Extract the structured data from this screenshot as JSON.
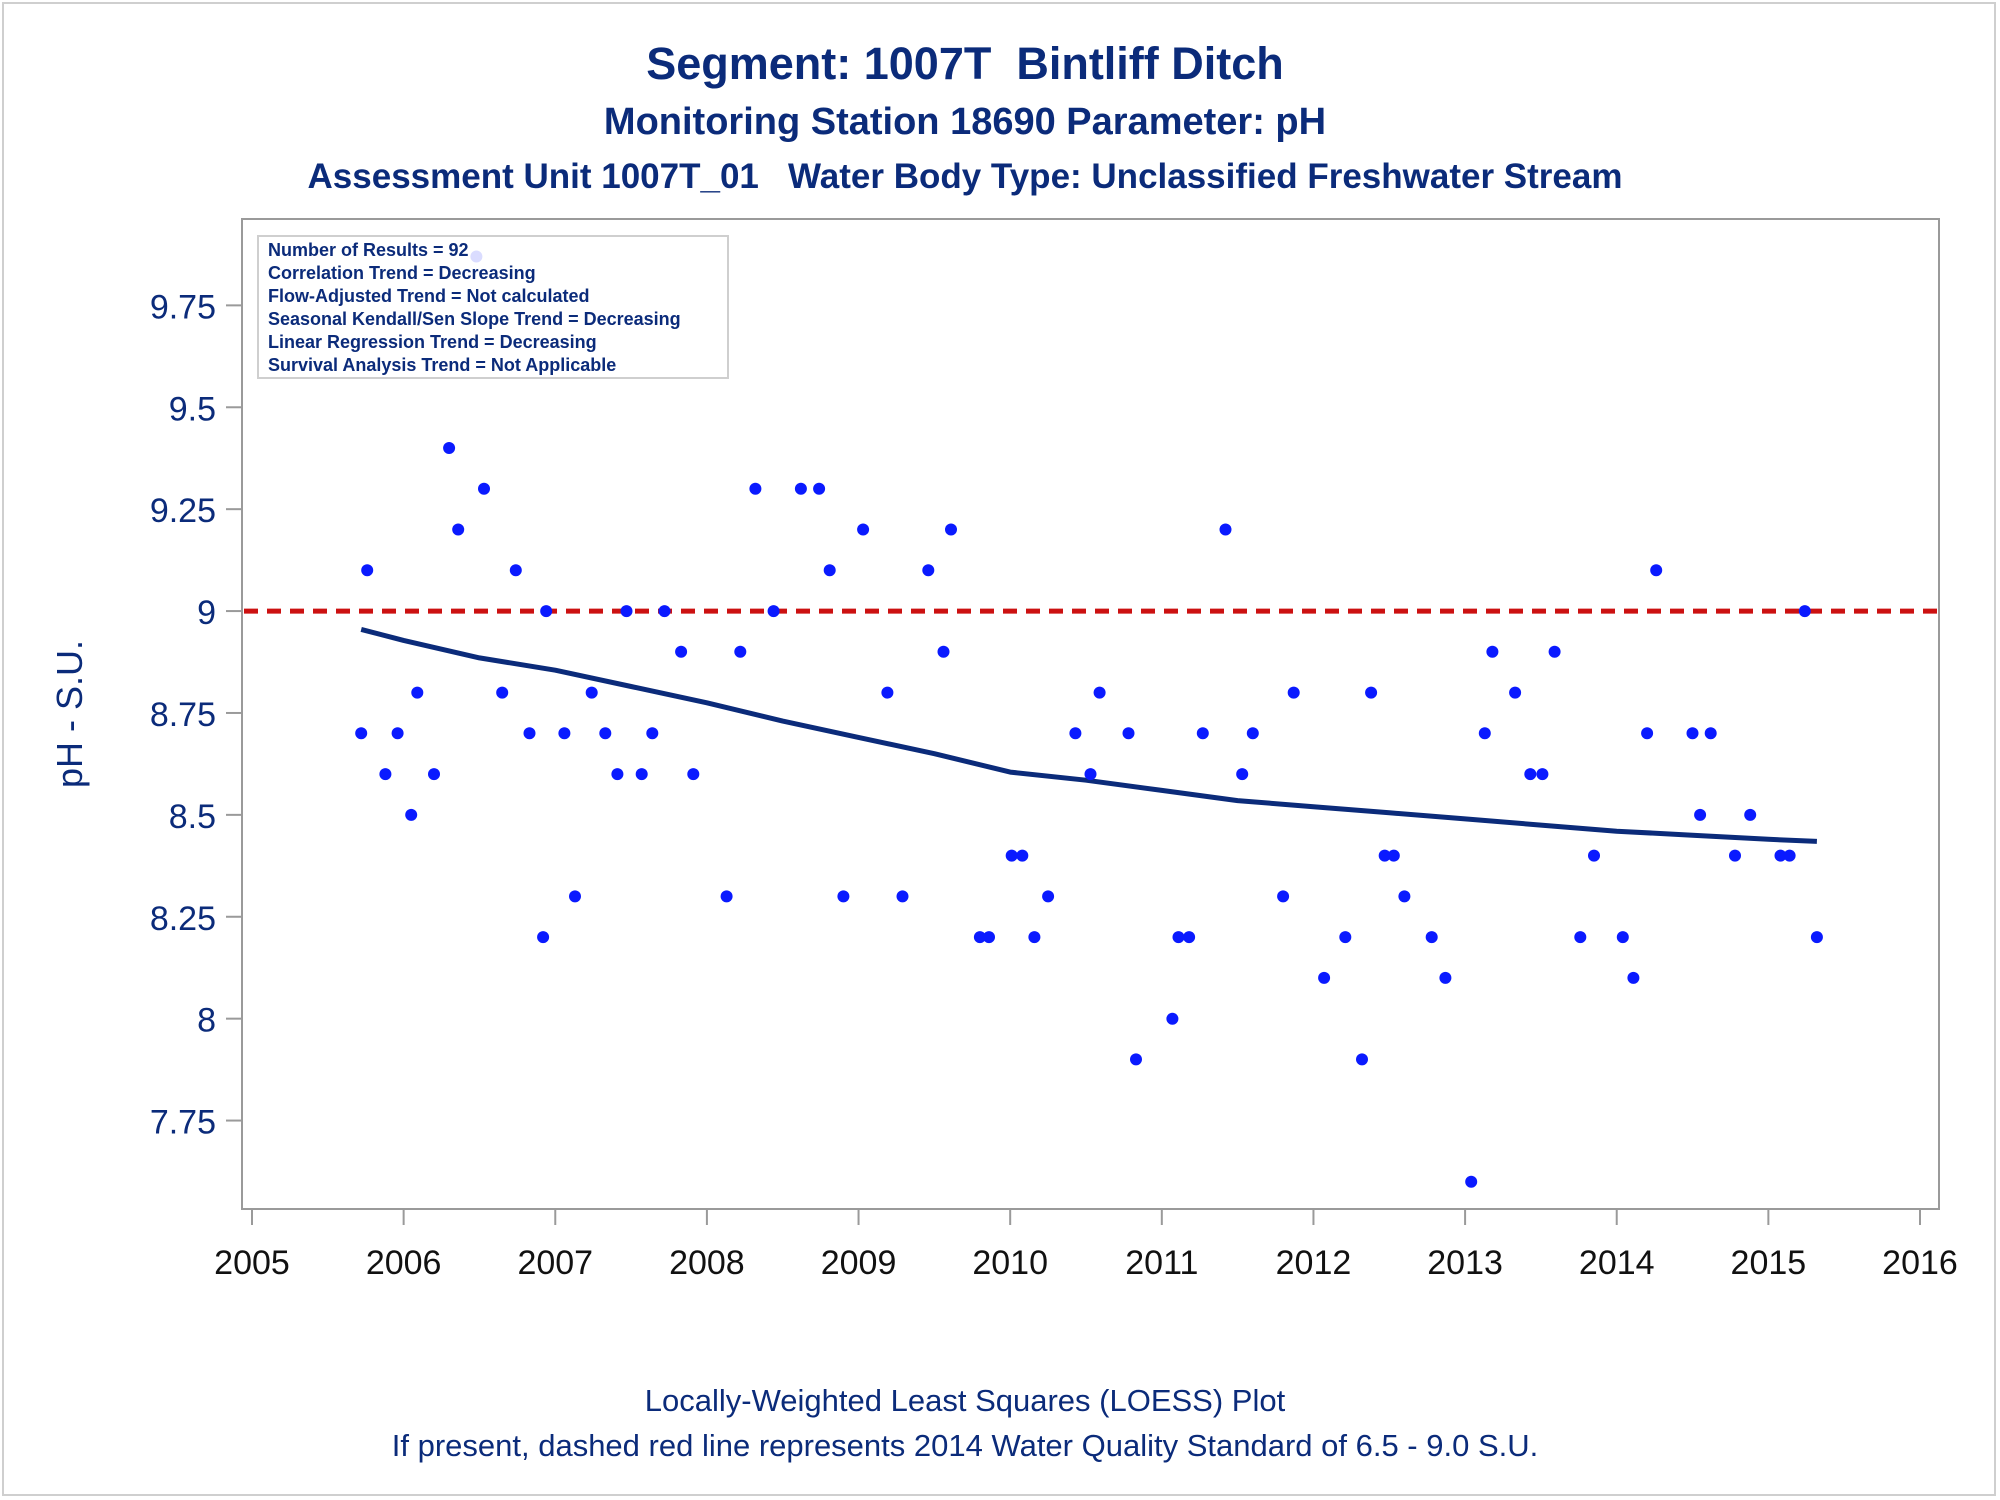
{
  "titles": {
    "line1": "Segment: 1007T  Bintliff Ditch",
    "line2": "Monitoring Station 18690 Parameter: pH",
    "line3": "Assessment Unit 1007T_01   Water Body Type: Unclassified Freshwater Stream"
  },
  "footnotes": {
    "line1": "Locally-Weighted Least Squares (LOESS) Plot",
    "line2": "If present, dashed red line represents 2014 Water Quality Standard of 6.5 - 9.0 S.U."
  },
  "colors": {
    "title": "#0b2b7a",
    "points": "#0a1aff",
    "loess": "#0b2b7a",
    "standard_line": "#cc1111",
    "axis": "#9a9a9a"
  },
  "chart_data": {
    "type": "scatter",
    "ylabel": "pH - S.U.",
    "xlabel": "",
    "xlim": [
      2005,
      2016
    ],
    "ylim": [
      7.56,
      9.93
    ],
    "x_ticks": [
      2005,
      2006,
      2007,
      2008,
      2009,
      2010,
      2011,
      2012,
      2013,
      2014,
      2015,
      2016
    ],
    "y_ticks": [
      7.75,
      8,
      8.25,
      8.5,
      8.75,
      9,
      9.25,
      9.5,
      9.75
    ],
    "y_tick_labels": [
      "7.75",
      "8",
      "8.25",
      "8.5",
      "8.75",
      "9",
      "9.25",
      "9.5",
      "9.75"
    ],
    "grid": false,
    "legend_box": {
      "placement": "top-left",
      "lines": [
        "Number of Results = 92",
        "Correlation Trend = Decreasing",
        "Flow-Adjusted Trend = Not calculated",
        "Seasonal Kendall/Sen Slope Trend = Decreasing",
        "Linear Regression Trend = Decreasing",
        "Survival Analysis Trend = Not Applicable"
      ]
    },
    "reference_line": {
      "y": 9.0,
      "style": "dashed"
    },
    "series": [
      {
        "kind": "points",
        "points": [
          [
            2005.72,
            8.7
          ],
          [
            2005.76,
            9.1
          ],
          [
            2005.88,
            8.6
          ],
          [
            2005.96,
            8.7
          ],
          [
            2006.05,
            8.5
          ],
          [
            2006.09,
            8.8
          ],
          [
            2006.2,
            8.6
          ],
          [
            2006.3,
            9.4
          ],
          [
            2006.36,
            9.2
          ],
          [
            2006.48,
            9.87
          ],
          [
            2006.53,
            9.3
          ],
          [
            2006.65,
            8.8
          ],
          [
            2006.74,
            9.1
          ],
          [
            2006.83,
            8.7
          ],
          [
            2006.92,
            8.2
          ],
          [
            2006.94,
            9.0
          ],
          [
            2007.06,
            8.7
          ],
          [
            2007.13,
            8.3
          ],
          [
            2007.24,
            8.8
          ],
          [
            2007.33,
            8.7
          ],
          [
            2007.41,
            8.6
          ],
          [
            2007.47,
            9.0
          ],
          [
            2007.57,
            8.6
          ],
          [
            2007.64,
            8.7
          ],
          [
            2007.72,
            9.0
          ],
          [
            2007.83,
            8.9
          ],
          [
            2007.91,
            8.6
          ],
          [
            2008.13,
            8.3
          ],
          [
            2008.22,
            8.9
          ],
          [
            2008.32,
            9.3
          ],
          [
            2008.44,
            9.0
          ],
          [
            2008.62,
            9.3
          ],
          [
            2008.74,
            9.3
          ],
          [
            2008.81,
            9.1
          ],
          [
            2008.9,
            8.3
          ],
          [
            2009.03,
            9.2
          ],
          [
            2009.19,
            8.8
          ],
          [
            2009.29,
            8.3
          ],
          [
            2009.46,
            9.1
          ],
          [
            2009.56,
            8.9
          ],
          [
            2009.61,
            9.2
          ],
          [
            2009.8,
            8.2
          ],
          [
            2009.86,
            8.2
          ],
          [
            2010.01,
            8.4
          ],
          [
            2010.08,
            8.4
          ],
          [
            2010.16,
            8.2
          ],
          [
            2010.25,
            8.3
          ],
          [
            2010.43,
            8.7
          ],
          [
            2010.53,
            8.6
          ],
          [
            2010.59,
            8.8
          ],
          [
            2010.78,
            8.7
          ],
          [
            2010.83,
            7.9
          ],
          [
            2011.07,
            8.0
          ],
          [
            2011.11,
            8.2
          ],
          [
            2011.18,
            8.2
          ],
          [
            2011.27,
            8.7
          ],
          [
            2011.42,
            9.2
          ],
          [
            2011.53,
            8.6
          ],
          [
            2011.6,
            8.7
          ],
          [
            2011.8,
            8.3
          ],
          [
            2011.87,
            8.8
          ],
          [
            2012.07,
            8.1
          ],
          [
            2012.21,
            8.2
          ],
          [
            2012.32,
            7.9
          ],
          [
            2012.38,
            8.8
          ],
          [
            2012.47,
            8.4
          ],
          [
            2012.53,
            8.4
          ],
          [
            2012.6,
            8.3
          ],
          [
            2012.78,
            8.2
          ],
          [
            2012.87,
            8.1
          ],
          [
            2013.04,
            7.6
          ],
          [
            2013.13,
            8.7
          ],
          [
            2013.18,
            8.9
          ],
          [
            2013.33,
            8.8
          ],
          [
            2013.43,
            8.6
          ],
          [
            2013.51,
            8.6
          ],
          [
            2013.59,
            8.9
          ],
          [
            2013.76,
            8.2
          ],
          [
            2013.85,
            8.4
          ],
          [
            2014.04,
            8.2
          ],
          [
            2014.11,
            8.1
          ],
          [
            2014.2,
            8.7
          ],
          [
            2014.26,
            9.1
          ],
          [
            2014.5,
            8.7
          ],
          [
            2014.55,
            8.5
          ],
          [
            2014.62,
            8.7
          ],
          [
            2014.78,
            8.4
          ],
          [
            2014.88,
            8.5
          ],
          [
            2015.08,
            8.4
          ],
          [
            2015.14,
            8.4
          ],
          [
            2015.24,
            9.0
          ],
          [
            2015.32,
            8.2
          ]
        ]
      },
      {
        "kind": "loess",
        "points": [
          [
            2005.72,
            8.955
          ],
          [
            2006.0,
            8.928
          ],
          [
            2006.5,
            8.885
          ],
          [
            2007.0,
            8.855
          ],
          [
            2007.5,
            8.815
          ],
          [
            2008.0,
            8.775
          ],
          [
            2008.5,
            8.73
          ],
          [
            2009.0,
            8.69
          ],
          [
            2009.5,
            8.65
          ],
          [
            2010.0,
            8.605
          ],
          [
            2010.5,
            8.585
          ],
          [
            2011.0,
            8.56
          ],
          [
            2011.5,
            8.535
          ],
          [
            2012.0,
            8.52
          ],
          [
            2012.5,
            8.505
          ],
          [
            2013.0,
            8.49
          ],
          [
            2013.5,
            8.475
          ],
          [
            2014.0,
            8.46
          ],
          [
            2014.5,
            8.45
          ],
          [
            2015.0,
            8.44
          ],
          [
            2015.32,
            8.435
          ]
        ]
      }
    ]
  }
}
